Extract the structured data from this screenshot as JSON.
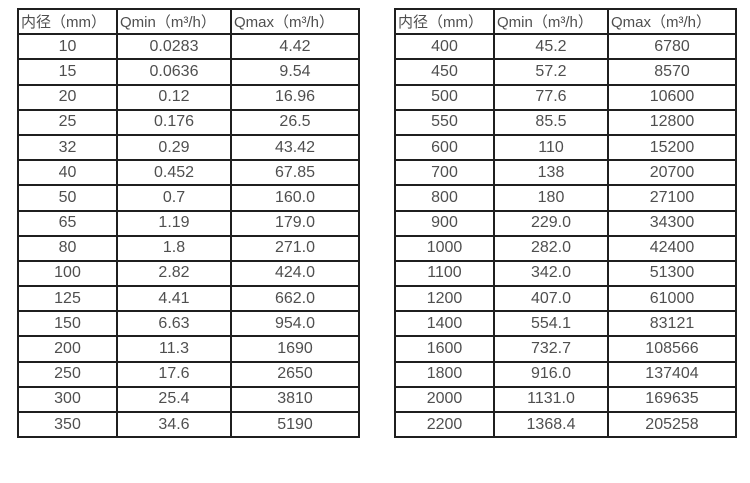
{
  "page": {
    "background": "#ffffff"
  },
  "colors": {
    "text": "#4f4f4f",
    "border": "#1f1f1f"
  },
  "tables": [
    {
      "name": "small-diameter-flow-table",
      "headers": [
        "内径（mm）",
        "Qmin（m³/h）",
        "Qmax（m³/h）"
      ],
      "rows": [
        [
          "10",
          "0.0283",
          "4.42"
        ],
        [
          "15",
          "0.0636",
          "9.54"
        ],
        [
          "20",
          "0.12",
          "16.96"
        ],
        [
          "25",
          "0.176",
          "26.5"
        ],
        [
          "32",
          "0.29",
          "43.42"
        ],
        [
          "40",
          "0.452",
          "67.85"
        ],
        [
          "50",
          "0.7",
          "160.0"
        ],
        [
          "65",
          "1.19",
          "179.0"
        ],
        [
          "80",
          "1.8",
          "271.0"
        ],
        [
          "100",
          "2.82",
          "424.0"
        ],
        [
          "125",
          "4.41",
          "662.0"
        ],
        [
          "150",
          "6.63",
          "954.0"
        ],
        [
          "200",
          "11.3",
          "1690"
        ],
        [
          "250",
          "17.6",
          "2650"
        ],
        [
          "300",
          "25.4",
          "3810"
        ],
        [
          "350",
          "34.6",
          "5190"
        ]
      ]
    },
    {
      "name": "large-diameter-flow-table",
      "headers": [
        "内径（mm）",
        "Qmin（m³/h）",
        "Qmax（m³/h）"
      ],
      "rows": [
        [
          "400",
          "45.2",
          "6780"
        ],
        [
          "450",
          "57.2",
          "8570"
        ],
        [
          "500",
          "77.6",
          "10600"
        ],
        [
          "550",
          "85.5",
          "12800"
        ],
        [
          "600",
          "110",
          "15200"
        ],
        [
          "700",
          "138",
          "20700"
        ],
        [
          "800",
          "180",
          "27100"
        ],
        [
          "900",
          "229.0",
          "34300"
        ],
        [
          "1000",
          "282.0",
          "42400"
        ],
        [
          "1100",
          "342.0",
          "51300"
        ],
        [
          "1200",
          "407.0",
          "61000"
        ],
        [
          "1400",
          "554.1",
          "83121"
        ],
        [
          "1600",
          "732.7",
          "108566"
        ],
        [
          "1800",
          "916.0",
          "137404"
        ],
        [
          "2000",
          "1131.0",
          "169635"
        ],
        [
          "2200",
          "1368.4",
          "205258"
        ]
      ]
    }
  ]
}
